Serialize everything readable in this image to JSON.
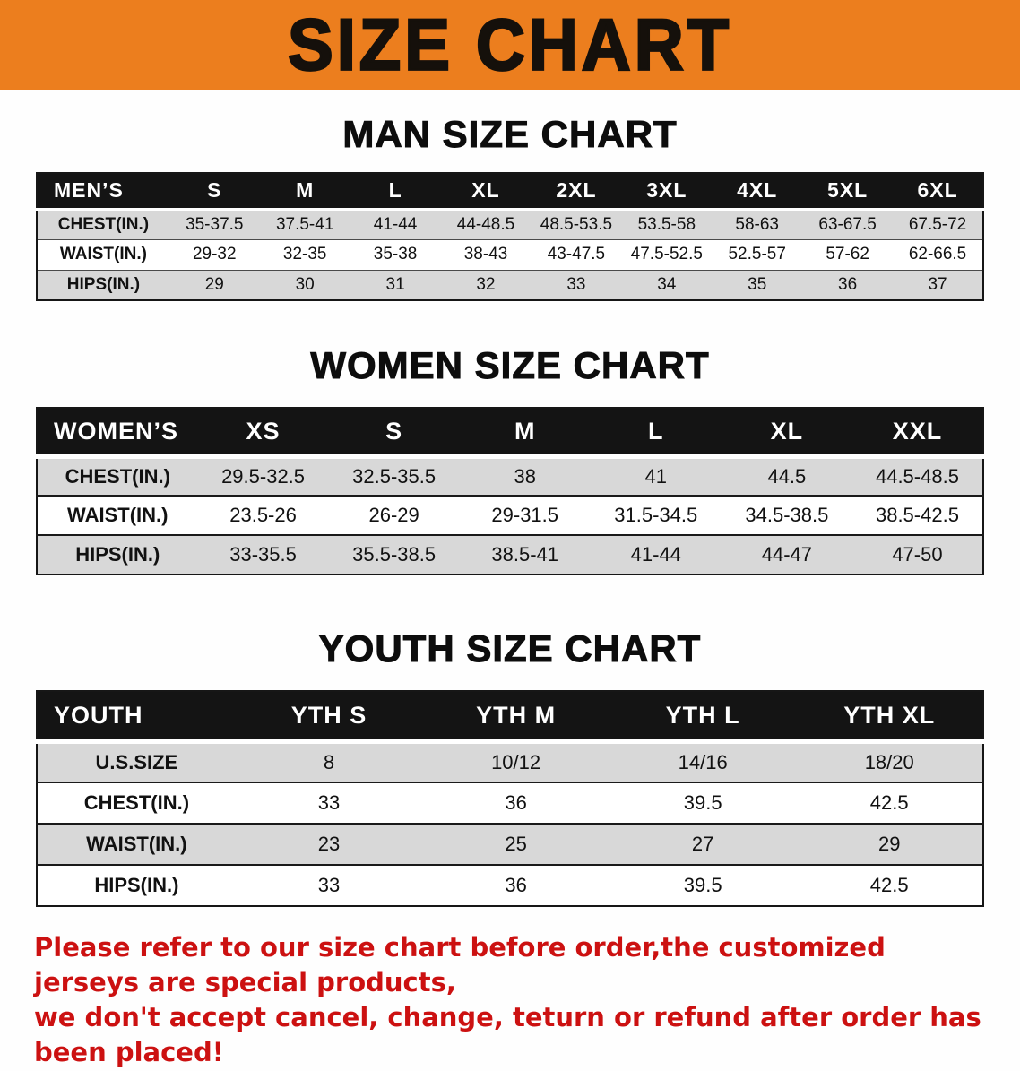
{
  "banner": {
    "title": "SIZE CHART",
    "bg_color": "#EC7E1E",
    "text_color": "#15100b"
  },
  "sections": [
    {
      "id": "men",
      "heading": "MAN SIZE CHART",
      "table": {
        "header": [
          "MEN’S",
          "S",
          "M",
          "L",
          "XL",
          "2XL",
          "3XL",
          "4XL",
          "5XL",
          "6XL"
        ],
        "rows": [
          [
            "CHEST(IN.)",
            "35-37.5",
            "37.5-41",
            "41-44",
            "44-48.5",
            "48.5-53.5",
            "53.5-58",
            "58-63",
            "63-67.5",
            "67.5-72"
          ],
          [
            "WAIST(IN.)",
            "29-32",
            "32-35",
            "35-38",
            "38-43",
            "43-47.5",
            "47.5-52.5",
            "52.5-57",
            "57-62",
            "62-66.5"
          ],
          [
            "HIPS(IN.)",
            "29",
            "30",
            "31",
            "32",
            "33",
            "34",
            "35",
            "36",
            "37"
          ]
        ]
      }
    },
    {
      "id": "women",
      "heading": "WOMEN SIZE CHART",
      "table": {
        "header": [
          "WOMEN’S",
          "XS",
          "S",
          "M",
          "L",
          "XL",
          "XXL"
        ],
        "rows": [
          [
            "CHEST(IN.)",
            "29.5-32.5",
            "32.5-35.5",
            "38",
            "41",
            "44.5",
            "44.5-48.5"
          ],
          [
            "WAIST(IN.)",
            "23.5-26",
            "26-29",
            "29-31.5",
            "31.5-34.5",
            "34.5-38.5",
            "38.5-42.5"
          ],
          [
            "HIPS(IN.)",
            "33-35.5",
            "35.5-38.5",
            "38.5-41",
            "41-44",
            "44-47",
            "47-50"
          ]
        ]
      }
    },
    {
      "id": "youth",
      "heading": "YOUTH SIZE CHART",
      "table": {
        "header": [
          "YOUTH",
          "YTH S",
          "YTH M",
          "YTH L",
          "YTH XL"
        ],
        "rows": [
          [
            "U.S.SIZE",
            "8",
            "10/12",
            "14/16",
            "18/20"
          ],
          [
            "CHEST(IN.)",
            "33",
            "36",
            "39.5",
            "42.5"
          ],
          [
            "WAIST(IN.)",
            "23",
            "25",
            "27",
            "29"
          ],
          [
            "HIPS(IN.)",
            "33",
            "36",
            "39.5",
            "42.5"
          ]
        ]
      }
    }
  ],
  "disclaimer": {
    "line1": "Please refer to our size chart before order,the customized jerseys are special products,",
    "line2": "we don't accept cancel, change, teturn or refund after order has been placed!",
    "color": "#CC1111"
  }
}
